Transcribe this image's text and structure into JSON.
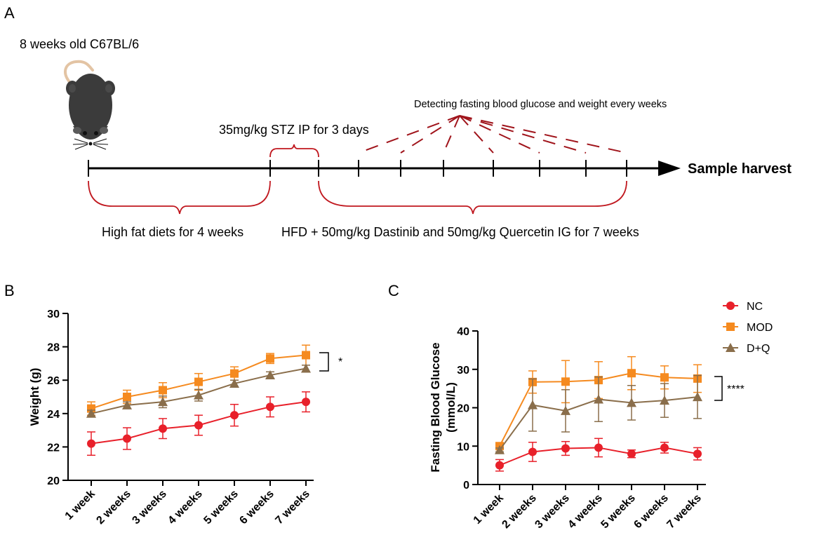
{
  "panels": {
    "a": "A",
    "b": "B",
    "c": "C"
  },
  "colors": {
    "NC": "#e8202a",
    "MOD": "#f58a1f",
    "DQ": "#8a6e4b",
    "bracket": "#c0171e",
    "dash": "#a0141b",
    "axis": "#000000"
  },
  "schematic": {
    "mouse_label": "8 weeks old C67BL/6",
    "detect_label": "Detecting fasting blood glucose and weight every weeks",
    "stz_label": "35mg/kg STZ IP for 3 days",
    "harvest_label": "Sample harvest",
    "hfd_label": "High fat diets for 4 weeks",
    "treatment_label": "HFD + 50mg/kg Dastinib and 50mg/kg Quercetin IG for 7 weeks"
  },
  "legend": [
    {
      "name": "NC",
      "marker": "circle",
      "color": "#e8202a"
    },
    {
      "name": "MOD",
      "marker": "square",
      "color": "#f58a1f"
    },
    {
      "name": "D+Q",
      "marker": "triangle",
      "color": "#8a6e4b"
    }
  ],
  "chart_data": [
    {
      "type": "line",
      "panel": "B",
      "title": "",
      "xlabel": "",
      "ylabel": "Weight (g)",
      "categories": [
        "1 week",
        "2 weeks",
        "3 weeks",
        "4 weeks",
        "5 weeks",
        "6 weeks",
        "7 weeks"
      ],
      "ylim": [
        20,
        30
      ],
      "yticks": [
        "20",
        "22",
        "24",
        "26",
        "28",
        "30"
      ],
      "series": [
        {
          "name": "NC",
          "values": [
            22.2,
            22.5,
            23.1,
            23.3,
            23.9,
            24.4,
            24.7
          ],
          "errors": [
            0.7,
            0.65,
            0.6,
            0.6,
            0.65,
            0.6,
            0.6
          ]
        },
        {
          "name": "MOD",
          "values": [
            24.3,
            25.0,
            25.4,
            25.9,
            26.4,
            27.3,
            27.5
          ],
          "errors": [
            0.4,
            0.4,
            0.45,
            0.5,
            0.4,
            0.3,
            0.6
          ]
        },
        {
          "name": "D+Q",
          "values": [
            24.0,
            24.5,
            24.7,
            25.1,
            25.8,
            26.3,
            26.7
          ],
          "errors": [
            0.2,
            0.2,
            0.35,
            0.35,
            0.2,
            0.2,
            0.2
          ]
        }
      ],
      "significance": "*"
    },
    {
      "type": "line",
      "panel": "C",
      "title": "",
      "xlabel": "",
      "ylabel": "Fasting Blood Glucose",
      "ylabel_unit": "(mmol/L)",
      "categories": [
        "1 week",
        "2 weeks",
        "3 weeks",
        "4 weeks",
        "5 weeks",
        "6 weeks",
        "7 weeks"
      ],
      "ylim": [
        0,
        40
      ],
      "yticks": [
        "0",
        "10",
        "20",
        "30",
        "40"
      ],
      "series": [
        {
          "name": "NC",
          "values": [
            5.0,
            8.5,
            9.4,
            9.6,
            8.0,
            9.6,
            8.0
          ],
          "errors": [
            1.5,
            2.5,
            1.8,
            2.4,
            1.0,
            1.4,
            1.6
          ]
        },
        {
          "name": "MOD",
          "values": [
            10.0,
            26.7,
            26.8,
            27.2,
            29.0,
            27.9,
            27.6
          ],
          "errors": [
            0.6,
            2.9,
            5.5,
            4.8,
            4.3,
            3.0,
            3.6
          ]
        },
        {
          "name": "D+Q",
          "values": [
            9.0,
            20.7,
            19.2,
            22.2,
            21.3,
            21.9,
            22.8
          ],
          "errors": [
            0.5,
            6.8,
            5.5,
            5.8,
            4.5,
            4.4,
            5.6
          ]
        }
      ],
      "significance": "****"
    }
  ]
}
